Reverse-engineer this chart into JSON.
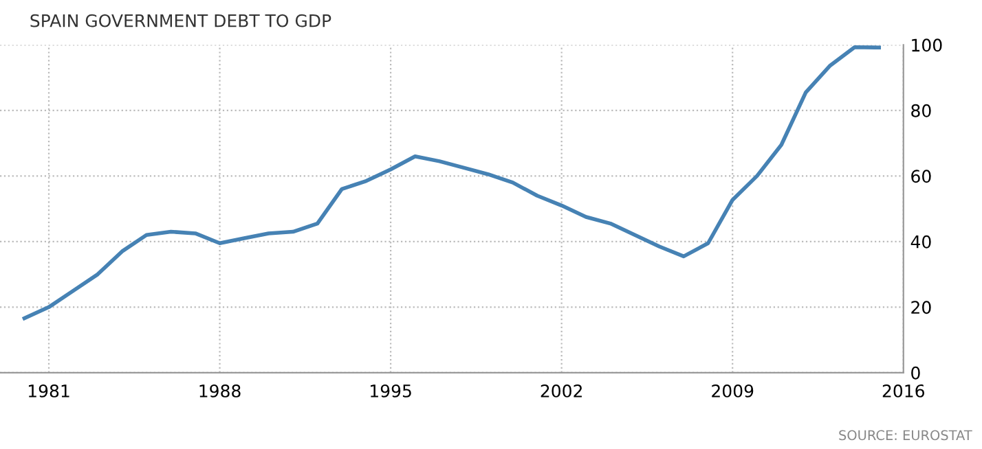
{
  "chart_data": {
    "type": "line",
    "title": "SPAIN GOVERNMENT DEBT TO GDP",
    "x": [
      1980,
      1981,
      1982,
      1983,
      1984,
      1985,
      1986,
      1987,
      1988,
      1989,
      1990,
      1991,
      1992,
      1993,
      1994,
      1995,
      1996,
      1997,
      1998,
      1999,
      2000,
      2001,
      2002,
      2003,
      2004,
      2005,
      2006,
      2007,
      2008,
      2009,
      2010,
      2011,
      2012,
      2013,
      2014,
      2015
    ],
    "series": [
      {
        "color": "#4682b4",
        "values": [
          16.6,
          20,
          25,
          30,
          37,
          42,
          43,
          42.5,
          39.5,
          41,
          42.5,
          43,
          45.5,
          56,
          58.5,
          62,
          66,
          64.5,
          62.5,
          60.5,
          58,
          54,
          51,
          47.5,
          45.5,
          42,
          38.5,
          35.5,
          39.5,
          52.7,
          60,
          69.5,
          85.5,
          93.7,
          99.3,
          99.2
        ]
      }
    ],
    "xlim": [
      1979,
      2016
    ],
    "xticks": [
      1981,
      1988,
      1995,
      2002,
      2009,
      2016
    ],
    "ylim": [
      0,
      100
    ],
    "yticks": [
      0,
      20,
      40,
      60,
      80,
      100
    ],
    "grid": true,
    "line_style": "solid",
    "annotations": [
      "SOURCE: EUROSTAT"
    ]
  }
}
